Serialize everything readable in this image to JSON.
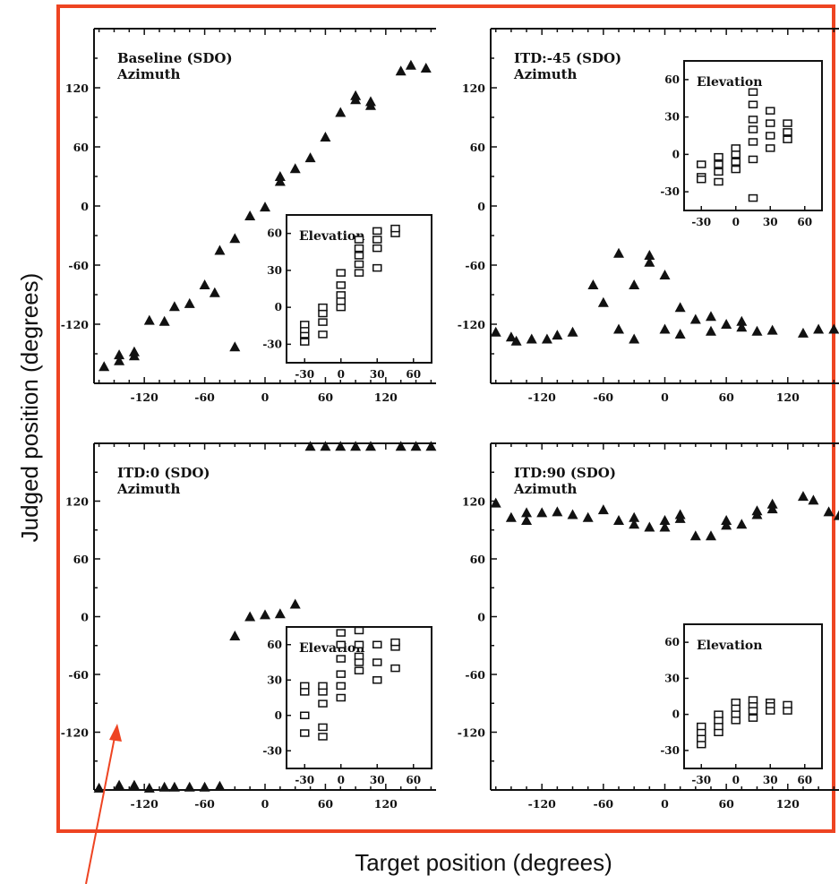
{
  "figure": {
    "x_axis_label": "Target position (degrees)",
    "y_axis_label": "Judged position (degrees)",
    "colors": {
      "frame": "#ee4422",
      "arrow": "#ee4422",
      "ink": "#111111"
    }
  },
  "chart_data": [
    {
      "type": "scatter",
      "title": "Baseline (SDO)",
      "subtitle": "Azimuth",
      "marker": "filled-triangle",
      "xlim": [
        -170,
        170
      ],
      "ylim": [
        -180,
        180
      ],
      "xticks": [
        -120,
        -60,
        0,
        60,
        120
      ],
      "yticks": [
        120,
        60,
        0,
        -60,
        -120
      ],
      "points": [
        [
          -160,
          -163
        ],
        [
          -145,
          -157
        ],
        [
          -145,
          -151
        ],
        [
          -130,
          -152
        ],
        [
          -130,
          -148
        ],
        [
          -115,
          -116
        ],
        [
          -100,
          -117
        ],
        [
          -90,
          -102
        ],
        [
          -75,
          -99
        ],
        [
          -60,
          -80
        ],
        [
          -50,
          -88
        ],
        [
          -45,
          -45
        ],
        [
          -30,
          -33
        ],
        [
          -30,
          -143
        ],
        [
          -15,
          -10
        ],
        [
          0,
          -1
        ],
        [
          15,
          25
        ],
        [
          15,
          30
        ],
        [
          30,
          38
        ],
        [
          45,
          49
        ],
        [
          60,
          70
        ],
        [
          75,
          95
        ],
        [
          90,
          108
        ],
        [
          90,
          112
        ],
        [
          105,
          102
        ],
        [
          105,
          106
        ],
        [
          135,
          137
        ],
        [
          145,
          143
        ],
        [
          160,
          140
        ]
      ],
      "inset": {
        "title": "Elevation",
        "marker": "open-square",
        "xlim": [
          -45,
          75
        ],
        "ylim": [
          -45,
          75
        ],
        "xticks": [
          -30,
          0,
          30,
          60
        ],
        "yticks": [
          60,
          30,
          0,
          -30
        ],
        "points": [
          [
            -30,
            -28
          ],
          [
            -30,
            -22
          ],
          [
            -30,
            -18
          ],
          [
            -30,
            -14
          ],
          [
            -15,
            -22
          ],
          [
            -15,
            -12
          ],
          [
            -15,
            -5
          ],
          [
            -15,
            0
          ],
          [
            0,
            0
          ],
          [
            0,
            5
          ],
          [
            0,
            10
          ],
          [
            0,
            18
          ],
          [
            0,
            28
          ],
          [
            15,
            28
          ],
          [
            15,
            35
          ],
          [
            15,
            42
          ],
          [
            15,
            48
          ],
          [
            15,
            55
          ],
          [
            30,
            55
          ],
          [
            30,
            48
          ],
          [
            30,
            32
          ],
          [
            30,
            62
          ],
          [
            45,
            60
          ],
          [
            45,
            64
          ]
        ]
      }
    },
    {
      "type": "scatter",
      "title": "ITD:-45 (SDO)",
      "subtitle": "Azimuth",
      "marker": "filled-triangle",
      "xlim": [
        -170,
        170
      ],
      "ylim": [
        -180,
        180
      ],
      "xticks": [
        -120,
        -60,
        0,
        60,
        120
      ],
      "yticks": [
        120,
        60,
        0,
        -60,
        -120
      ],
      "points": [
        [
          -165,
          -128
        ],
        [
          -150,
          -133
        ],
        [
          -145,
          -137
        ],
        [
          -130,
          -135
        ],
        [
          -115,
          -135
        ],
        [
          -105,
          -131
        ],
        [
          -90,
          -128
        ],
        [
          -70,
          -80
        ],
        [
          -60,
          -98
        ],
        [
          -45,
          -48
        ],
        [
          -45,
          -125
        ],
        [
          -30,
          -80
        ],
        [
          -30,
          -135
        ],
        [
          -15,
          -50
        ],
        [
          -15,
          -57
        ],
        [
          0,
          -70
        ],
        [
          0,
          -125
        ],
        [
          15,
          -103
        ],
        [
          15,
          -130
        ],
        [
          30,
          -115
        ],
        [
          45,
          -112
        ],
        [
          45,
          -127
        ],
        [
          60,
          -120
        ],
        [
          75,
          -117
        ],
        [
          75,
          -123
        ],
        [
          90,
          -127
        ],
        [
          105,
          -126
        ],
        [
          135,
          -129
        ],
        [
          150,
          -125
        ],
        [
          165,
          -125
        ]
      ],
      "inset": {
        "title": "Elevation",
        "marker": "open-square",
        "xlim": [
          -45,
          75
        ],
        "ylim": [
          -45,
          75
        ],
        "xticks": [
          -30,
          0,
          30,
          60
        ],
        "yticks": [
          60,
          30,
          0,
          -30
        ],
        "points": [
          [
            -30,
            -8
          ],
          [
            -30,
            -18
          ],
          [
            -30,
            -20
          ],
          [
            -15,
            -2
          ],
          [
            -15,
            -8
          ],
          [
            -15,
            -14
          ],
          [
            -15,
            -22
          ],
          [
            0,
            5
          ],
          [
            0,
            0
          ],
          [
            0,
            -6
          ],
          [
            0,
            -12
          ],
          [
            15,
            50
          ],
          [
            15,
            40
          ],
          [
            15,
            28
          ],
          [
            15,
            20
          ],
          [
            15,
            10
          ],
          [
            15,
            -4
          ],
          [
            15,
            -35
          ],
          [
            30,
            35
          ],
          [
            30,
            25
          ],
          [
            30,
            15
          ],
          [
            30,
            5
          ],
          [
            45,
            25
          ],
          [
            45,
            18
          ],
          [
            45,
            12
          ]
        ]
      }
    },
    {
      "type": "scatter",
      "title": "ITD:0 (SDO)",
      "subtitle": "Azimuth",
      "marker": "filled-triangle",
      "xlim": [
        -170,
        170
      ],
      "ylim": [
        -180,
        180
      ],
      "xticks": [
        -120,
        -60,
        0,
        60,
        120
      ],
      "yticks": [
        120,
        60,
        0,
        -60,
        -120
      ],
      "points": [
        [
          -165,
          -178
        ],
        [
          -145,
          -175
        ],
        [
          -130,
          -175
        ],
        [
          -115,
          -178
        ],
        [
          -100,
          -177
        ],
        [
          -90,
          -177
        ],
        [
          -75,
          -177
        ],
        [
          -60,
          -177
        ],
        [
          -45,
          -176
        ],
        [
          -30,
          -20
        ],
        [
          -15,
          0
        ],
        [
          0,
          2
        ],
        [
          15,
          3
        ],
        [
          30,
          13
        ],
        [
          45,
          177
        ],
        [
          60,
          177
        ],
        [
          75,
          177
        ],
        [
          90,
          177
        ],
        [
          105,
          177
        ],
        [
          135,
          177
        ],
        [
          150,
          177
        ],
        [
          165,
          177
        ]
      ],
      "inset": {
        "title": "Elevation",
        "marker": "open-square",
        "xlim": [
          -45,
          75
        ],
        "ylim": [
          -45,
          75
        ],
        "xticks": [
          -30,
          0,
          30,
          60
        ],
        "yticks": [
          60,
          30,
          0,
          -30
        ],
        "points": [
          [
            -30,
            25
          ],
          [
            -30,
            20
          ],
          [
            -30,
            0
          ],
          [
            -30,
            -15
          ],
          [
            -15,
            20
          ],
          [
            -15,
            25
          ],
          [
            -15,
            10
          ],
          [
            -15,
            -10
          ],
          [
            -15,
            -18
          ],
          [
            0,
            70
          ],
          [
            0,
            60
          ],
          [
            0,
            48
          ],
          [
            0,
            35
          ],
          [
            0,
            25
          ],
          [
            0,
            15
          ],
          [
            15,
            72
          ],
          [
            15,
            60
          ],
          [
            15,
            50
          ],
          [
            15,
            45
          ],
          [
            15,
            38
          ],
          [
            30,
            60
          ],
          [
            30,
            45
          ],
          [
            30,
            30
          ],
          [
            45,
            58
          ],
          [
            45,
            62
          ],
          [
            45,
            40
          ]
        ]
      }
    },
    {
      "type": "scatter",
      "title": "ITD:90 (SDO)",
      "subtitle": "Azimuth",
      "marker": "filled-triangle",
      "xlim": [
        -170,
        170
      ],
      "ylim": [
        -180,
        180
      ],
      "xticks": [
        -120,
        -60,
        0,
        60,
        120
      ],
      "yticks": [
        120,
        60,
        0,
        -60,
        -120
      ],
      "points": [
        [
          -165,
          118
        ],
        [
          -150,
          103
        ],
        [
          -135,
          100
        ],
        [
          -135,
          108
        ],
        [
          -120,
          108
        ],
        [
          -105,
          109
        ],
        [
          -90,
          106
        ],
        [
          -75,
          103
        ],
        [
          -60,
          111
        ],
        [
          -45,
          100
        ],
        [
          -30,
          103
        ],
        [
          -30,
          96
        ],
        [
          -15,
          93
        ],
        [
          0,
          100
        ],
        [
          0,
          93
        ],
        [
          15,
          102
        ],
        [
          15,
          106
        ],
        [
          30,
          84
        ],
        [
          45,
          84
        ],
        [
          60,
          95
        ],
        [
          60,
          100
        ],
        [
          75,
          96
        ],
        [
          90,
          106
        ],
        [
          90,
          110
        ],
        [
          105,
          112
        ],
        [
          105,
          117
        ],
        [
          135,
          125
        ],
        [
          145,
          121
        ],
        [
          160,
          109
        ],
        [
          170,
          105
        ]
      ],
      "inset": {
        "title": "Elevation",
        "marker": "open-square",
        "xlim": [
          -45,
          75
        ],
        "ylim": [
          -45,
          75
        ],
        "xticks": [
          -30,
          0,
          30,
          60
        ],
        "yticks": [
          60,
          30,
          0,
          -30
        ],
        "points": [
          [
            -30,
            -25
          ],
          [
            -30,
            -20
          ],
          [
            -30,
            -15
          ],
          [
            -30,
            -10
          ],
          [
            -15,
            -15
          ],
          [
            -15,
            -10
          ],
          [
            -15,
            -5
          ],
          [
            -15,
            0
          ],
          [
            0,
            10
          ],
          [
            0,
            5
          ],
          [
            0,
            0
          ],
          [
            0,
            -5
          ],
          [
            15,
            12
          ],
          [
            15,
            7
          ],
          [
            15,
            3
          ],
          [
            15,
            -3
          ],
          [
            30,
            10
          ],
          [
            30,
            7
          ],
          [
            30,
            3
          ],
          [
            45,
            8
          ],
          [
            45,
            3
          ]
        ]
      }
    }
  ]
}
